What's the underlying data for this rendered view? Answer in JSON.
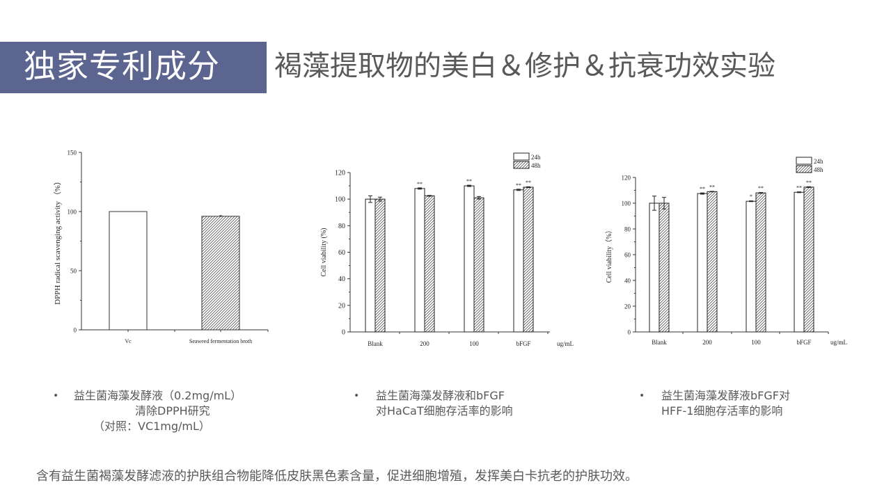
{
  "header": {
    "badge_title": "独家专利成分",
    "subtitle": "褐藻提取物的美白＆修护＆抗衰功效实验",
    "badge_color": "#5b6590"
  },
  "captions": [
    {
      "bullet": "•",
      "lines": [
        "益生菌海藻发酵液（0.2mg/mL）",
        "清除DPPH研究",
        "（对照：VC1mg/mL）"
      ]
    },
    {
      "bullet": "•",
      "lines": [
        "益生菌海藻发酵液和bFGF",
        "对HaCaT细胞存活率的影响"
      ]
    },
    {
      "bullet": "•",
      "lines": [
        "益生菌海藻发酵液bFGF对",
        "HFF-1细胞存活率的影响"
      ]
    }
  ],
  "footer": {
    "text": "含有益生菌褐藻发酵滤液的护肤组合物能降低皮肤黑色素含量，促进细胞增殖，发挥美白卡抗老的护肤功效。"
  },
  "chart_data": [
    {
      "type": "bar",
      "title": "",
      "ylabel": "DPPH radical scavenging activity （%）",
      "xlabel": "",
      "categories": [
        "Vc",
        "Seaweed fermentation broth"
      ],
      "values": [
        100,
        96
      ],
      "error": [
        0,
        0.5
      ],
      "patterns": [
        "empty",
        "hatched"
      ],
      "ylim": [
        0,
        150
      ],
      "yticks": [
        "0",
        "50",
        "100",
        "150"
      ],
      "grid": false,
      "legend": null
    },
    {
      "type": "bar",
      "title": "",
      "ylabel": "Cell viability (%)",
      "xlabel": "ug/mL",
      "categories": [
        "Blank",
        "200",
        "100",
        "bFGF"
      ],
      "series": [
        {
          "name": "24h",
          "pattern": "empty",
          "values": [
            100,
            108,
            110,
            107
          ],
          "error": [
            2.5,
            0.5,
            0.5,
            0.5
          ],
          "significance": [
            "",
            "**",
            "**",
            "**"
          ]
        },
        {
          "name": "48h",
          "pattern": "hatched",
          "values": [
            100,
            102.5,
            101,
            109
          ],
          "error": [
            1.5,
            0.3,
            1.0,
            0.3
          ],
          "significance": [
            "",
            "",
            "",
            "**"
          ]
        }
      ],
      "ylim": [
        0,
        120
      ],
      "yticks": [
        "0",
        "20",
        "40",
        "60",
        "80",
        "100",
        "120"
      ],
      "grid": false,
      "legend_position": "top-right"
    },
    {
      "type": "bar",
      "title": "",
      "ylabel": "Cell viability（%）",
      "xlabel": "ug/mL",
      "categories": [
        "Blank",
        "200",
        "100",
        "bFGF"
      ],
      "series": [
        {
          "name": "24h",
          "pattern": "empty",
          "values": [
            100,
            107.5,
            101.5,
            108.5
          ],
          "error": [
            5.5,
            0.5,
            0.3,
            0.3
          ],
          "significance": [
            "",
            "**",
            "*",
            "**"
          ]
        },
        {
          "name": "48h",
          "pattern": "hatched",
          "values": [
            100,
            109,
            108,
            112.5
          ],
          "error": [
            4.5,
            0.2,
            0.3,
            0.3
          ],
          "significance": [
            "",
            "**",
            "**",
            "**"
          ]
        }
      ],
      "ylim": [
        0,
        120
      ],
      "yticks": [
        "0",
        "20",
        "40",
        "60",
        "80",
        "100",
        "120"
      ],
      "grid": false,
      "legend_position": "top-right"
    }
  ]
}
